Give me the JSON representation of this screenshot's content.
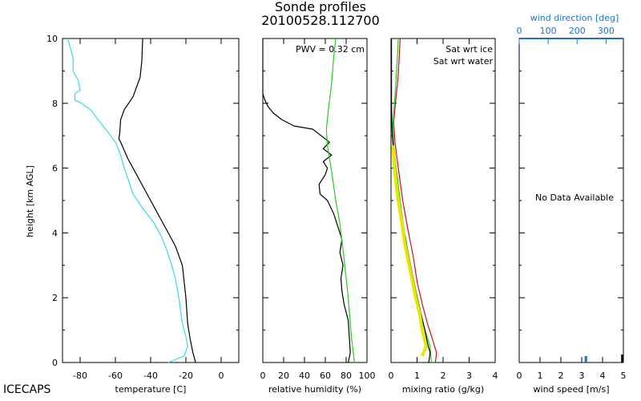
{
  "header": {
    "title": "Sonde profiles",
    "subtitle": "20100528.112700"
  },
  "footer": {
    "site_label": "ICECAPS"
  },
  "colors": {
    "axis": "#000000",
    "temperature": "#000000",
    "dewpoint": "#33dde6",
    "rh_sonde": "#000000",
    "rh_ice": "#22cc22",
    "mr_sonde": "#000000",
    "mr_smooth": "#e6e600",
    "sat_ice": "#22cc22",
    "sat_water": "#cc1111",
    "wind": "#1a73c9"
  },
  "chart_data": [
    {
      "id": "temperature",
      "type": "line",
      "xlabel": "temperature [C]",
      "ylabel": "height [km AGL]",
      "xlim": [
        -90,
        10
      ],
      "ylim": [
        0,
        10
      ],
      "xticks": [
        -80,
        -60,
        -40,
        -20,
        0
      ],
      "yticks": [
        0,
        2,
        4,
        6,
        8,
        10
      ],
      "series": [
        {
          "name": "temperature",
          "color_key": "temperature",
          "points": [
            [
              -14.5,
              0
            ],
            [
              -16,
              0.3
            ],
            [
              -17.5,
              0.7
            ],
            [
              -19,
              1.2
            ],
            [
              -19.5,
              1.6
            ],
            [
              -20,
              2
            ],
            [
              -22,
              3
            ],
            [
              -26,
              3.6
            ],
            [
              -30,
              4
            ],
            [
              -36,
              4.6
            ],
            [
              -42,
              5.2
            ],
            [
              -48,
              5.8
            ],
            [
              -53,
              6.3
            ],
            [
              -57,
              6.8
            ],
            [
              -58,
              6.9
            ],
            [
              -57.5,
              7.1
            ],
            [
              -57,
              7.5
            ],
            [
              -55,
              7.8
            ],
            [
              -50,
              8.2
            ],
            [
              -46,
              8.8
            ],
            [
              -45,
              9.3
            ],
            [
              -44.5,
              10
            ]
          ]
        },
        {
          "name": "dewpoint",
          "color_key": "dewpoint",
          "points": [
            [
              -30,
              0
            ],
            [
              -21,
              0.2
            ],
            [
              -19,
              0.5
            ],
            [
              -20,
              0.8
            ],
            [
              -22,
              1.2
            ],
            [
              -23,
              1.6
            ],
            [
              -24,
              2
            ],
            [
              -26,
              2.6
            ],
            [
              -28,
              3
            ],
            [
              -31,
              3.5
            ],
            [
              -34,
              3.9
            ],
            [
              -38,
              4.3
            ],
            [
              -45,
              4.8
            ],
            [
              -50,
              5.2
            ],
            [
              -53,
              5.7
            ],
            [
              -55,
              6
            ],
            [
              -57,
              6.4
            ],
            [
              -60,
              6.8
            ],
            [
              -64,
              7.1
            ],
            [
              -70,
              7.5
            ],
            [
              -74,
              7.8
            ],
            [
              -77,
              7.9
            ],
            [
              -79,
              8
            ],
            [
              -81,
              8.05
            ],
            [
              -83,
              8.1
            ],
            [
              -83,
              8.3
            ],
            [
              -80,
              8.4
            ],
            [
              -81,
              8.7
            ],
            [
              -84,
              9
            ],
            [
              -84,
              9.4
            ],
            [
              -87,
              10
            ]
          ]
        }
      ]
    },
    {
      "id": "relative_humidity",
      "type": "line",
      "xlabel": "relative humidity (%)",
      "xlim": [
        0,
        100
      ],
      "ylim": [
        0,
        10
      ],
      "xticks": [
        0,
        20,
        40,
        60,
        80,
        100
      ],
      "yticks": [
        0,
        2,
        4,
        6,
        8,
        10
      ],
      "annotation": "PWV = 0.32 cm",
      "series": [
        {
          "name": "rh_sonde",
          "color_key": "rh_sonde",
          "points": [
            [
              82,
              0
            ],
            [
              84,
              0.3
            ],
            [
              83,
              0.8
            ],
            [
              82,
              1.3
            ],
            [
              78,
              1.8
            ],
            [
              76,
              2.2
            ],
            [
              75,
              2.6
            ],
            [
              77,
              3
            ],
            [
              74,
              3.4
            ],
            [
              76,
              3.8
            ],
            [
              72,
              4.2
            ],
            [
              68,
              4.6
            ],
            [
              62,
              5
            ],
            [
              55,
              5.2
            ],
            [
              54,
              5.5
            ],
            [
              60,
              5.8
            ],
            [
              62,
              6
            ],
            [
              58,
              6.2
            ],
            [
              66,
              6.4
            ],
            [
              58,
              6.6
            ],
            [
              64,
              6.8
            ],
            [
              56,
              7
            ],
            [
              48,
              7.2
            ],
            [
              30,
              7.3
            ],
            [
              18,
              7.5
            ],
            [
              10,
              7.7
            ],
            [
              5,
              7.9
            ],
            [
              2,
              8.1
            ],
            [
              0,
              8.3
            ],
            [
              0,
              10
            ]
          ]
        },
        {
          "name": "rh_ice",
          "color_key": "rh_ice",
          "points": [
            [
              88,
              0
            ],
            [
              85,
              0.8
            ],
            [
              82,
              2
            ],
            [
              78,
              3.2
            ],
            [
              74,
              4.3
            ],
            [
              70,
              5
            ],
            [
              66,
              5.9
            ],
            [
              62,
              6.7
            ],
            [
              61,
              7.2
            ],
            [
              63,
              7.8
            ],
            [
              66,
              8.6
            ],
            [
              68,
              9.4
            ],
            [
              70,
              10
            ]
          ]
        }
      ]
    },
    {
      "id": "mixing_ratio",
      "type": "line",
      "xlabel": "mixing ratio (g/kg)",
      "xlim": [
        0,
        4
      ],
      "ylim": [
        0,
        10
      ],
      "xticks": [
        0,
        1,
        2,
        3,
        4
      ],
      "yticks": [
        0,
        2,
        4,
        6,
        8,
        10
      ],
      "legend": [
        "Sat wrt ice",
        "Sat wrt water"
      ],
      "series": [
        {
          "name": "sat_water",
          "color_key": "sat_water",
          "points": [
            [
              1.7,
              0
            ],
            [
              1.75,
              0.3
            ],
            [
              1.6,
              0.7
            ],
            [
              1.4,
              1.2
            ],
            [
              1.2,
              1.8
            ],
            [
              1.0,
              2.5
            ],
            [
              0.85,
              3.3
            ],
            [
              0.65,
              4.1
            ],
            [
              0.45,
              5
            ],
            [
              0.28,
              6
            ],
            [
              0.15,
              6.8
            ],
            [
              0.1,
              7.4
            ],
            [
              0.18,
              8.1
            ],
            [
              0.27,
              8.8
            ],
            [
              0.32,
              9.5
            ],
            [
              0.35,
              10
            ]
          ]
        },
        {
          "name": "sat_ice",
          "color_key": "sat_ice",
          "points": [
            [
              1.55,
              0
            ],
            [
              1.5,
              0.5
            ],
            [
              1.3,
              1
            ],
            [
              1.1,
              1.7
            ],
            [
              0.9,
              2.4
            ],
            [
              0.7,
              3.2
            ],
            [
              0.5,
              4.1
            ],
            [
              0.35,
              5
            ],
            [
              0.2,
              6
            ],
            [
              0.1,
              6.8
            ],
            [
              0.08,
              7.4
            ],
            [
              0.14,
              8.1
            ],
            [
              0.2,
              8.8
            ],
            [
              0.25,
              9.5
            ],
            [
              0.28,
              10
            ]
          ]
        },
        {
          "name": "mr_sonde",
          "color_key": "mr_sonde",
          "points": [
            [
              1.45,
              0
            ],
            [
              1.5,
              0.3
            ],
            [
              1.4,
              0.6
            ],
            [
              1.3,
              1
            ],
            [
              1.15,
              1.5
            ],
            [
              1.0,
              2
            ],
            [
              0.85,
              2.6
            ],
            [
              0.7,
              3.2
            ],
            [
              0.55,
              3.8
            ],
            [
              0.4,
              4.4
            ],
            [
              0.3,
              5
            ],
            [
              0.2,
              5.6
            ],
            [
              0.12,
              6.2
            ],
            [
              0.08,
              6.7
            ],
            [
              0.05,
              7
            ],
            [
              0.03,
              7.5
            ],
            [
              0.02,
              8
            ],
            [
              0.02,
              10
            ]
          ]
        },
        {
          "name": "mr_smooth",
          "color_key": "mr_smooth",
          "width": 4,
          "points": [
            [
              1.2,
              0.2
            ],
            [
              1.35,
              0.5
            ],
            [
              1.2,
              1
            ],
            [
              1.1,
              1.5
            ],
            [
              0.95,
              2
            ],
            [
              0.8,
              2.6
            ],
            [
              0.65,
              3.2
            ],
            [
              0.5,
              3.8
            ],
            [
              0.4,
              4.4
            ],
            [
              0.28,
              5
            ],
            [
              0.18,
              5.6
            ],
            [
              0.12,
              6.2
            ],
            [
              0.07,
              6.7
            ]
          ]
        }
      ]
    },
    {
      "id": "wind",
      "type": "line",
      "xlabel": "wind speed [m/s]",
      "xlim": [
        0,
        5
      ],
      "ylim": [
        0,
        10
      ],
      "xticks": [
        0,
        1,
        2,
        3,
        4,
        5
      ],
      "yticks": [
        0,
        2,
        4,
        6,
        8,
        10
      ],
      "top_axis_label": "wind direction [deg]",
      "top_axis_lim": [
        0,
        360
      ],
      "top_axis_ticks": [
        0,
        100,
        200,
        300
      ],
      "message": "No Data Available",
      "series": []
    }
  ]
}
